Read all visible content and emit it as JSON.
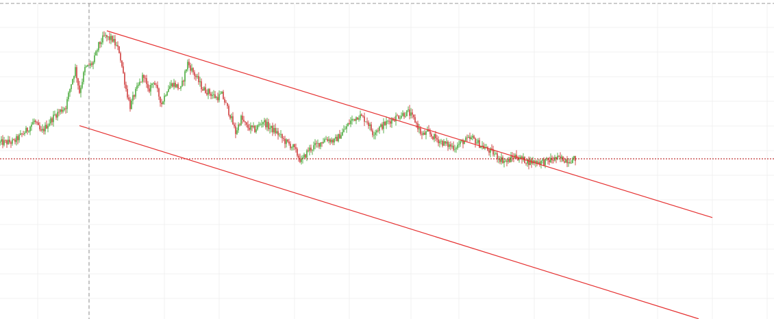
{
  "chart_data": {
    "type": "candlestick",
    "x_index_range": [
      0,
      430
    ],
    "ylim": [
      0,
      100
    ],
    "grid": true,
    "colors": {
      "up": "#2e9e1e",
      "down": "#c81e1e",
      "channel": "#e53030",
      "price_line": "#b00000",
      "crosshair": "#8a8a8a",
      "grid": "#f0f0f0"
    },
    "price_path": [
      [
        0,
        61.5
      ],
      [
        10,
        61.8
      ],
      [
        20,
        66
      ],
      [
        25,
        69
      ],
      [
        30,
        65
      ],
      [
        40,
        71
      ],
      [
        48,
        74
      ],
      [
        52,
        82
      ],
      [
        55,
        87
      ],
      [
        58,
        79
      ],
      [
        62,
        87
      ],
      [
        68,
        89
      ],
      [
        72,
        95
      ],
      [
        76,
        98
      ],
      [
        82,
        97
      ],
      [
        87,
        93
      ],
      [
        92,
        80
      ],
      [
        95,
        74
      ],
      [
        98,
        78
      ],
      [
        105,
        85
      ],
      [
        108,
        79
      ],
      [
        112,
        83
      ],
      [
        118,
        75
      ],
      [
        122,
        80
      ],
      [
        126,
        82
      ],
      [
        132,
        80
      ],
      [
        137,
        89
      ],
      [
        142,
        85
      ],
      [
        148,
        80
      ],
      [
        152,
        79
      ],
      [
        158,
        77
      ],
      [
        162,
        78
      ],
      [
        168,
        71
      ],
      [
        172,
        65
      ],
      [
        176,
        70
      ],
      [
        180,
        67
      ],
      [
        186,
        66
      ],
      [
        192,
        69
      ],
      [
        196,
        67
      ],
      [
        202,
        65
      ],
      [
        208,
        62
      ],
      [
        214,
        60
      ],
      [
        220,
        55
      ],
      [
        225,
        59
      ],
      [
        232,
        61
      ],
      [
        238,
        63
      ],
      [
        244,
        62
      ],
      [
        250,
        65
      ],
      [
        256,
        69
      ],
      [
        262,
        71
      ],
      [
        268,
        69
      ],
      [
        272,
        65
      ],
      [
        278,
        67
      ],
      [
        284,
        69
      ],
      [
        292,
        71
      ],
      [
        298,
        72
      ],
      [
        303,
        69
      ],
      [
        308,
        64
      ],
      [
        312,
        65
      ],
      [
        318,
        63
      ],
      [
        325,
        61
      ],
      [
        332,
        60
      ],
      [
        338,
        62
      ],
      [
        345,
        63
      ],
      [
        350,
        61
      ],
      [
        356,
        59
      ],
      [
        360,
        58
      ],
      [
        365,
        56
      ],
      [
        370,
        55
      ],
      [
        376,
        57
      ],
      [
        380,
        56
      ],
      [
        386,
        55
      ],
      [
        392,
        55
      ],
      [
        398,
        55
      ],
      [
        405,
        56
      ],
      [
        410,
        56
      ],
      [
        415,
        55.5
      ],
      [
        420,
        56
      ]
    ],
    "channel_upper": [
      [
        78,
        100
      ],
      [
        520,
        35.8
      ]
    ],
    "channel_lower": [
      [
        58,
        67.4
      ],
      [
        510,
        1
      ]
    ],
    "horizontal_level": 56,
    "crosshair_x_index": 65
  }
}
